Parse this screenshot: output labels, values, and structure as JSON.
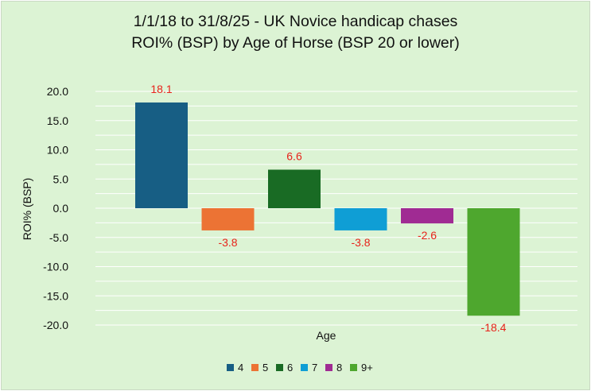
{
  "chart_data": {
    "type": "bar",
    "title_lines": [
      "1/1/18 to 31/8/25 - UK Novice handicap chases",
      "ROI% (BSP) by Age of Horse (BSP 20 or lower)"
    ],
    "xlabel": "Age",
    "ylabel": "ROI% (BSP)",
    "ylim": [
      -20,
      20
    ],
    "yticks": [
      20,
      15,
      10,
      5,
      0,
      -5,
      -10,
      -15,
      -20
    ],
    "ytick_labels": [
      "20.0",
      "15.0",
      "10.0",
      "5.0",
      "0.0",
      "-5.0",
      "-10.0",
      "-15.0",
      "-20.0"
    ],
    "grid": true,
    "legend_position": "bottom",
    "data_label_color": "#e8231b",
    "series": [
      {
        "name": "4",
        "value": 18.1,
        "label": "18.1",
        "color": "#175e84"
      },
      {
        "name": "5",
        "value": -3.8,
        "label": "-3.8",
        "color": "#ec7334"
      },
      {
        "name": "6",
        "value": 6.6,
        "label": "6.6",
        "color": "#196b24"
      },
      {
        "name": "7",
        "value": -3.8,
        "label": "-3.8",
        "color": "#0f9ed5"
      },
      {
        "name": "8",
        "value": -2.6,
        "label": "-2.6",
        "color": "#a02b93"
      },
      {
        "name": "9+",
        "value": -18.4,
        "label": "-18.4",
        "color": "#4ea72e"
      }
    ]
  }
}
